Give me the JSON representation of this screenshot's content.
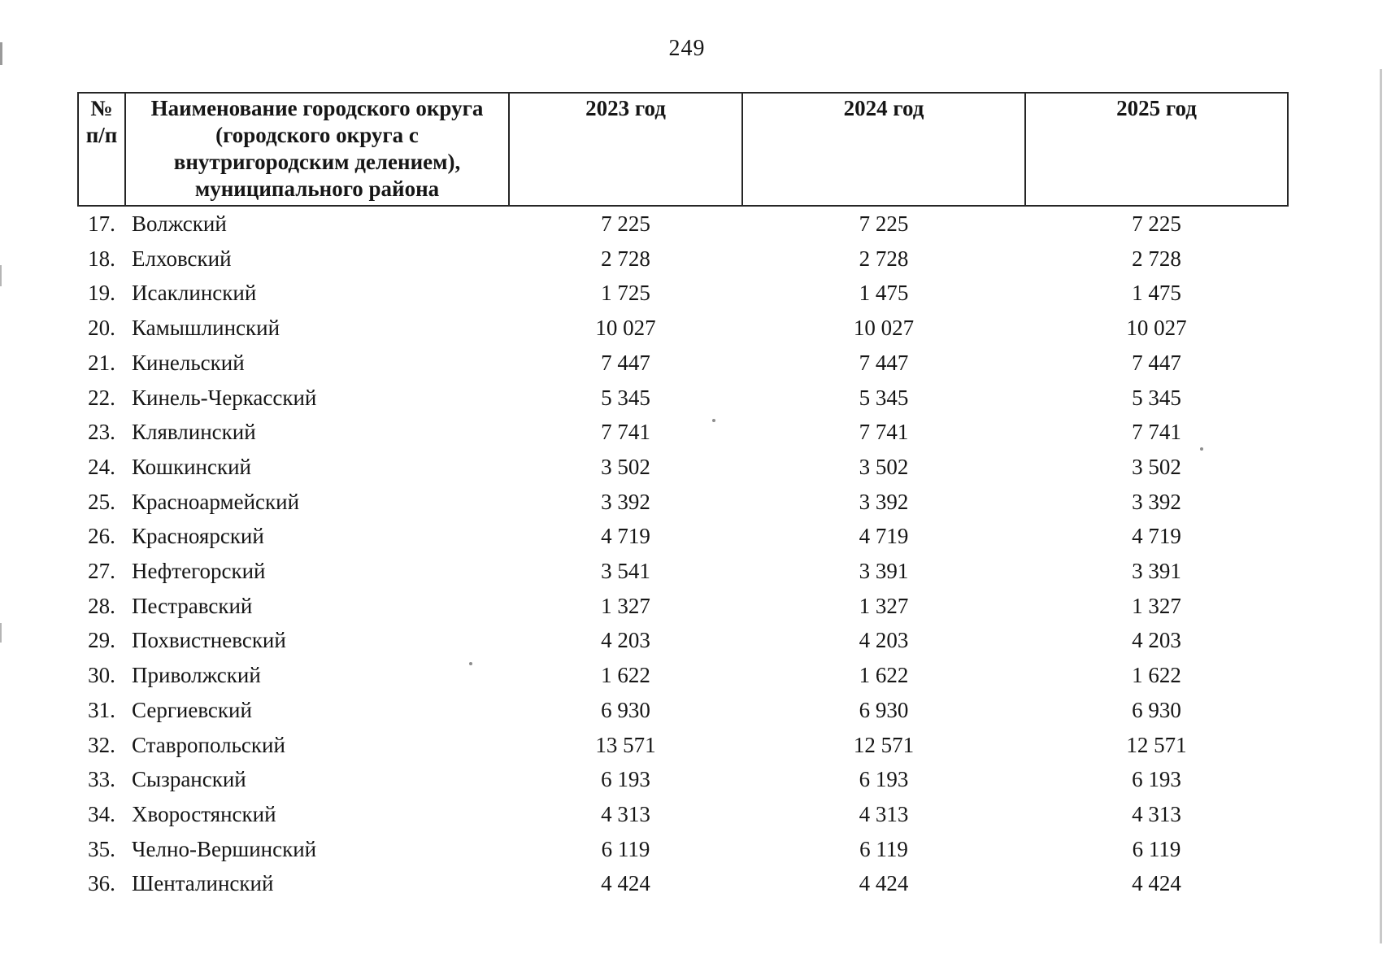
{
  "page": {
    "number": "249"
  },
  "table": {
    "headers": {
      "num": "№\nп/п",
      "name": "Наименование городского округа\n(городского округа с\nвнутригородским делением),\nмуниципального района",
      "y2023": "2023 год",
      "y2024": "2024 год",
      "y2025": "2025 год"
    },
    "rows": [
      {
        "num": "17.",
        "name": "Волжский",
        "y2023": "7 225",
        "y2024": "7 225",
        "y2025": "7 225"
      },
      {
        "num": "18.",
        "name": "Елховский",
        "y2023": "2 728",
        "y2024": "2 728",
        "y2025": "2 728"
      },
      {
        "num": "19.",
        "name": "Исаклинский",
        "y2023": "1 725",
        "y2024": "1 475",
        "y2025": "1 475"
      },
      {
        "num": "20.",
        "name": "Камышлинский",
        "y2023": "10 027",
        "y2024": "10 027",
        "y2025": "10 027"
      },
      {
        "num": "21.",
        "name": "Кинельский",
        "y2023": "7 447",
        "y2024": "7 447",
        "y2025": "7 447"
      },
      {
        "num": "22.",
        "name": "Кинель-Черкасский",
        "y2023": "5 345",
        "y2024": "5 345",
        "y2025": "5 345"
      },
      {
        "num": "23.",
        "name": "Клявлинский",
        "y2023": "7 741",
        "y2024": "7 741",
        "y2025": "7 741"
      },
      {
        "num": "24.",
        "name": "Кошкинский",
        "y2023": "3 502",
        "y2024": "3 502",
        "y2025": "3 502"
      },
      {
        "num": "25.",
        "name": "Красноармейский",
        "y2023": "3 392",
        "y2024": "3 392",
        "y2025": "3 392"
      },
      {
        "num": "26.",
        "name": "Красноярский",
        "y2023": "4 719",
        "y2024": "4 719",
        "y2025": "4 719"
      },
      {
        "num": "27.",
        "name": "Нефтегорский",
        "y2023": "3 541",
        "y2024": "3 391",
        "y2025": "3 391"
      },
      {
        "num": "28.",
        "name": "Пестравский",
        "y2023": "1 327",
        "y2024": "1 327",
        "y2025": "1 327"
      },
      {
        "num": "29.",
        "name": "Похвистневский",
        "y2023": "4 203",
        "y2024": "4 203",
        "y2025": "4 203"
      },
      {
        "num": "30.",
        "name": "Приволжский",
        "y2023": "1 622",
        "y2024": "1 622",
        "y2025": "1 622"
      },
      {
        "num": "31.",
        "name": "Сергиевский",
        "y2023": "6 930",
        "y2024": "6 930",
        "y2025": "6 930"
      },
      {
        "num": "32.",
        "name": "Ставропольский",
        "y2023": "13 571",
        "y2024": "12 571",
        "y2025": "12 571"
      },
      {
        "num": "33.",
        "name": "Сызранский",
        "y2023": "6 193",
        "y2024": "6 193",
        "y2025": "6 193"
      },
      {
        "num": "34.",
        "name": "Хворостянский",
        "y2023": "4 313",
        "y2024": "4 313",
        "y2025": "4 313"
      },
      {
        "num": "35.",
        "name": "Челно-Вершинский",
        "y2023": "6 119",
        "y2024": "6 119",
        "y2025": "6 119"
      },
      {
        "num": "36.",
        "name": "Шенталинский",
        "y2023": "4 424",
        "y2024": "4 424",
        "y2025": "4 424"
      }
    ]
  }
}
